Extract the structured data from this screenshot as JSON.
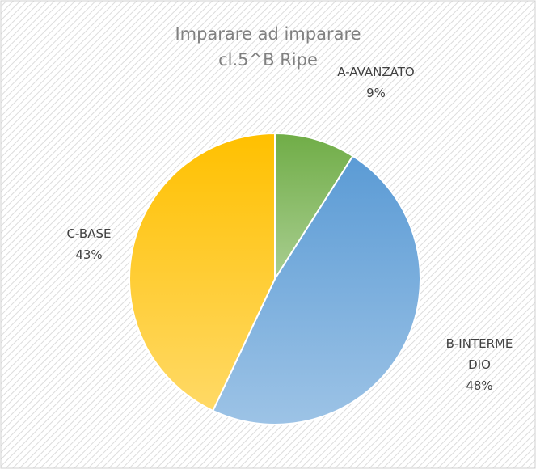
{
  "chart_data": {
    "type": "pie",
    "title": [
      "Imparare ad imparare",
      "cl.5^B Ripe"
    ],
    "categories": [
      "A-AVANZATO",
      "B-INTERMEDIO",
      "C-BASE"
    ],
    "values": [
      9,
      48,
      43
    ],
    "value_labels": [
      "9%",
      "48%",
      "43%"
    ],
    "colors": [
      "#70ad47",
      "#5b9bd5",
      "#ffc000"
    ]
  }
}
